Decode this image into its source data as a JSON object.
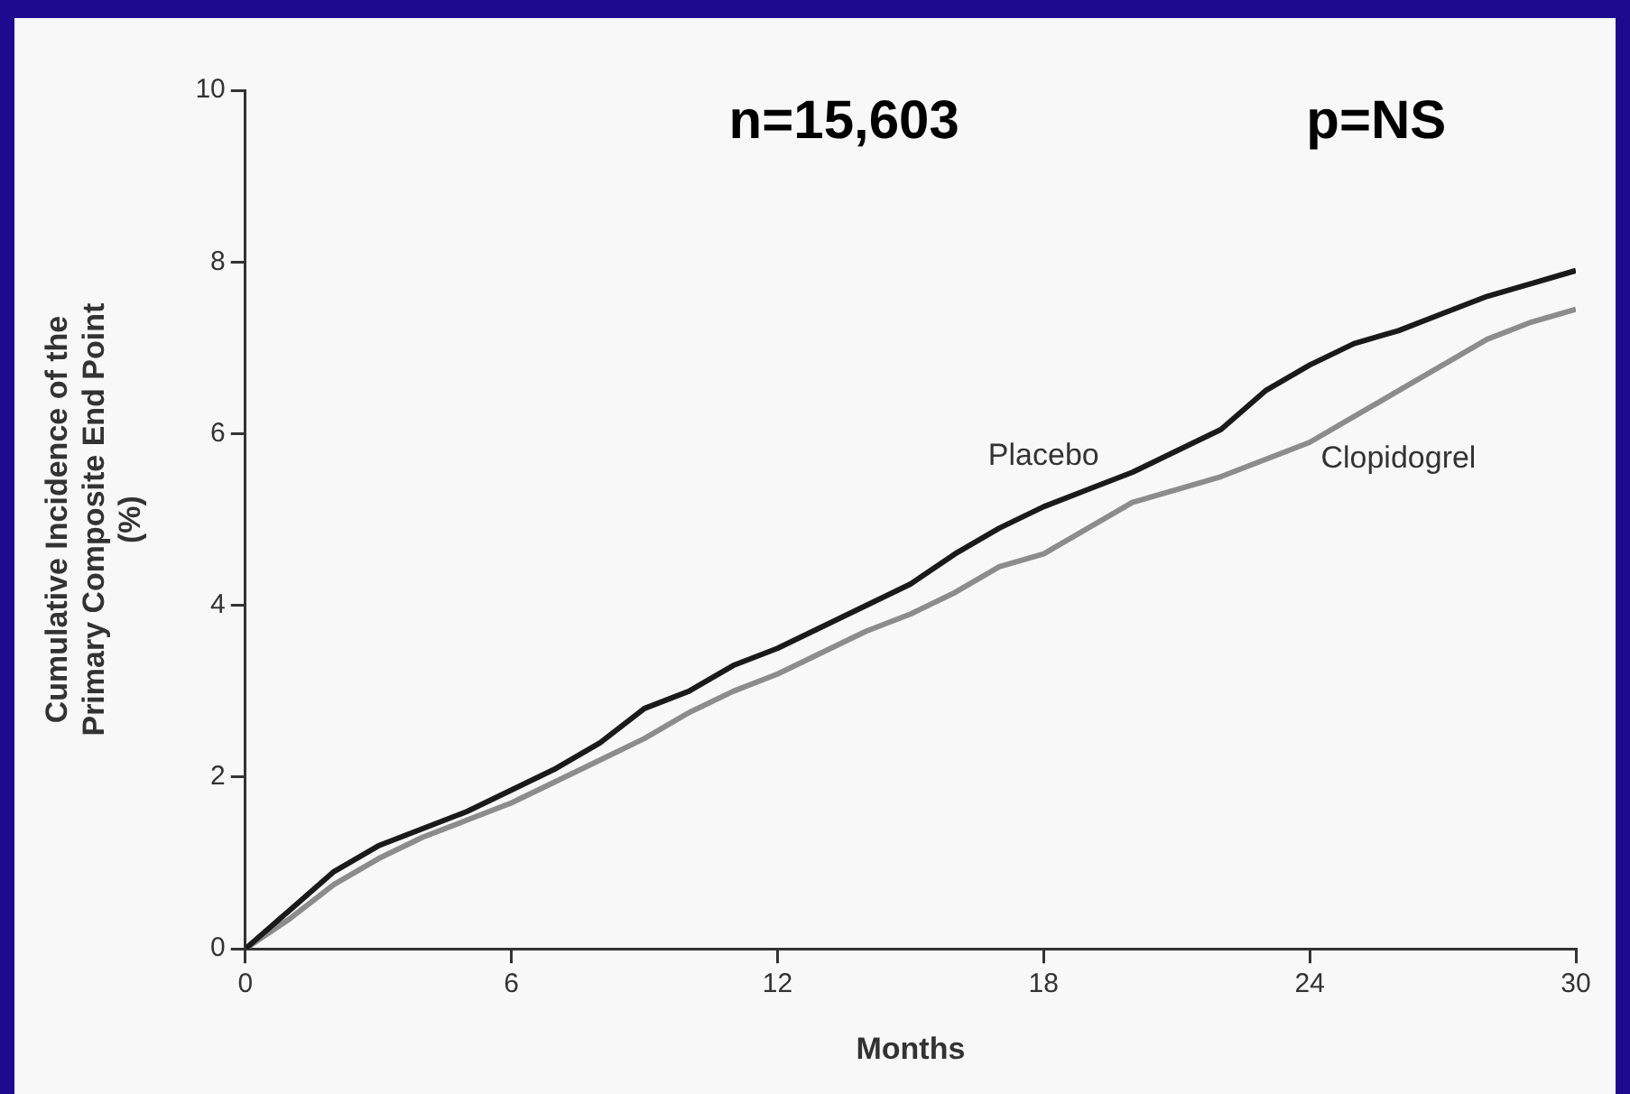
{
  "chart_data": {
    "type": "line",
    "xlabel": "Months",
    "ylabel": "Cumulative Incidence of the Primary Composite End Point (%)",
    "annotations": [
      "n=15,603",
      "p=NS"
    ],
    "x": [
      0,
      1,
      2,
      3,
      4,
      5,
      6,
      7,
      8,
      9,
      10,
      11,
      12,
      13,
      14,
      15,
      16,
      17,
      18,
      19,
      20,
      21,
      22,
      23,
      24,
      25,
      26,
      27,
      28,
      29,
      30
    ],
    "series": [
      {
        "name": "Placebo",
        "color": "#1a1a1a",
        "values": [
          0,
          0.45,
          0.9,
          1.2,
          1.4,
          1.6,
          1.85,
          2.1,
          2.4,
          2.8,
          3.0,
          3.3,
          3.5,
          3.75,
          4.0,
          4.25,
          4.6,
          4.9,
          5.15,
          5.35,
          5.55,
          5.8,
          6.05,
          6.5,
          6.8,
          7.05,
          7.2,
          7.4,
          7.6,
          7.75,
          7.9
        ]
      },
      {
        "name": "Clopidogrel",
        "color": "#8c8c8c",
        "values": [
          0,
          0.35,
          0.75,
          1.05,
          1.3,
          1.5,
          1.7,
          1.95,
          2.2,
          2.45,
          2.75,
          3.0,
          3.2,
          3.45,
          3.7,
          3.9,
          4.15,
          4.45,
          4.6,
          4.9,
          5.2,
          5.35,
          5.5,
          5.7,
          5.9,
          6.2,
          6.5,
          6.8,
          7.1,
          7.3,
          7.45
        ]
      }
    ],
    "xlim": [
      0,
      30
    ],
    "xticks": [
      0,
      6,
      12,
      18,
      24,
      30
    ],
    "ylim": [
      0,
      10
    ],
    "yticks": [
      0,
      2,
      4,
      6,
      8,
      10
    ],
    "grid": false,
    "legend": false,
    "marker": "none",
    "line_style": "solid"
  }
}
